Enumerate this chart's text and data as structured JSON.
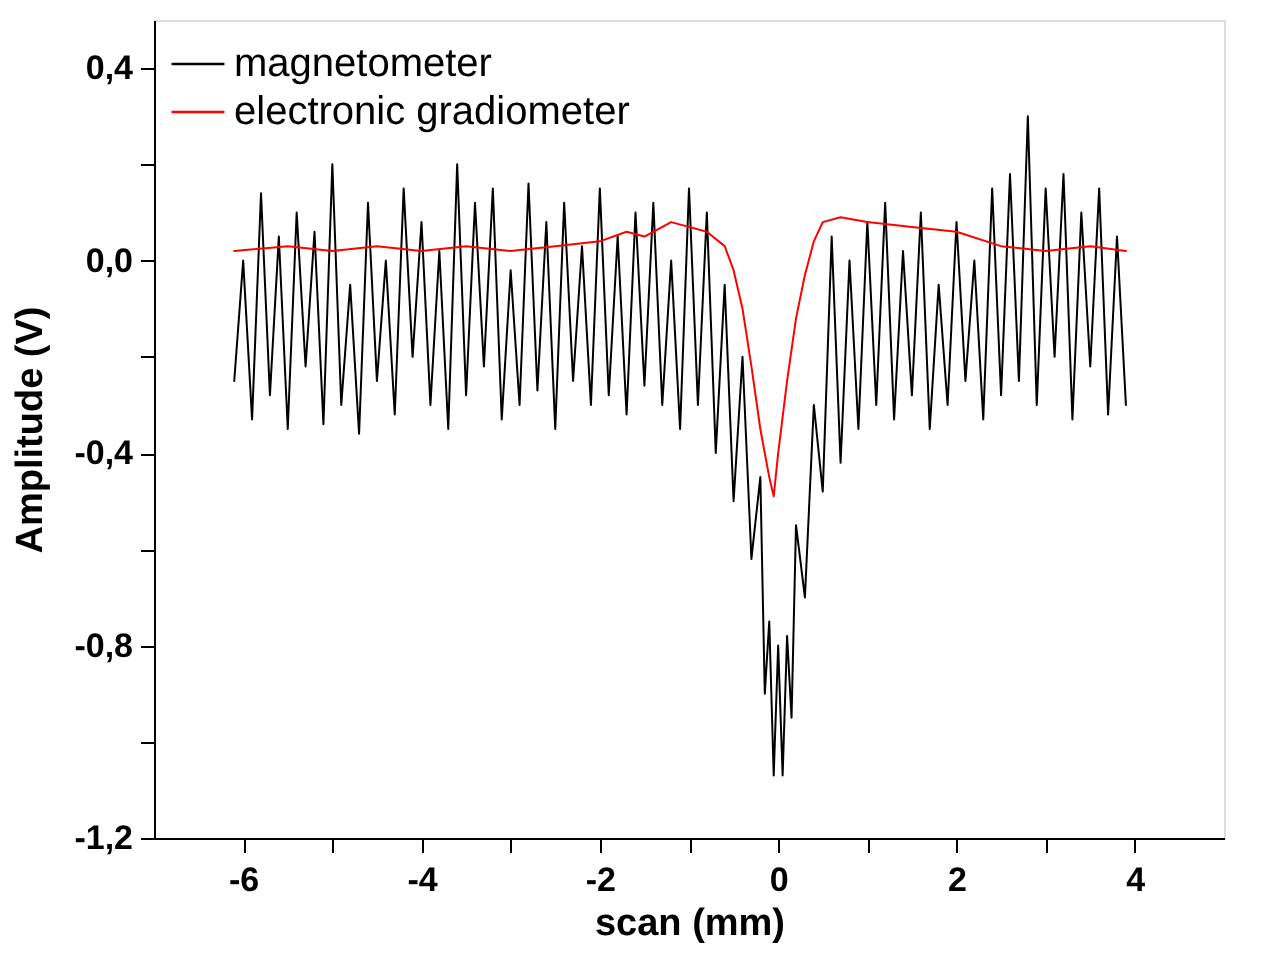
{
  "chart_data": {
    "type": "line",
    "xlabel": "scan (mm)",
    "ylabel": "Amplitude (V)",
    "xlim": [
      -7,
      5
    ],
    "xticks": [
      {
        "value": -6,
        "label": "-6"
      },
      {
        "value": -5,
        "label": null
      },
      {
        "value": -4,
        "label": "-4"
      },
      {
        "value": -3,
        "label": null
      },
      {
        "value": -2,
        "label": "-2"
      },
      {
        "value": -1,
        "label": null
      },
      {
        "value": 0,
        "label": "0"
      },
      {
        "value": 1,
        "label": null
      },
      {
        "value": 2,
        "label": "2"
      },
      {
        "value": 3,
        "label": null
      },
      {
        "value": 4,
        "label": "4"
      }
    ],
    "ylim": [
      -1.2,
      0.5
    ],
    "yticks": [
      {
        "value": 0.4,
        "label": "0,4"
      },
      {
        "value": 0.2,
        "label": null
      },
      {
        "value": 0,
        "label": "0,0"
      },
      {
        "value": -0.2,
        "label": null
      },
      {
        "value": -0.4,
        "label": "-0,4"
      },
      {
        "value": -0.6,
        "label": null
      },
      {
        "value": -0.8,
        "label": "-0,8"
      },
      {
        "value": -1.0,
        "label": null
      },
      {
        "value": -1.2,
        "label": "-1,2"
      }
    ],
    "grid": false,
    "legend": "top left",
    "marker": "none",
    "line_style": "solid",
    "series": [
      {
        "name": "magnetometer",
        "color": "#000000",
        "x": [
          -6.1,
          -6.0,
          -5.9,
          -5.8,
          -5.7,
          -5.6,
          -5.5,
          -5.4,
          -5.3,
          -5.2,
          -5.1,
          -5.0,
          -4.9,
          -4.8,
          -4.7,
          -4.6,
          -4.5,
          -4.4,
          -4.3,
          -4.2,
          -4.1,
          -4.0,
          -3.9,
          -3.8,
          -3.7,
          -3.6,
          -3.5,
          -3.4,
          -3.3,
          -3.2,
          -3.1,
          -3.0,
          -2.9,
          -2.8,
          -2.7,
          -2.6,
          -2.5,
          -2.4,
          -2.3,
          -2.2,
          -2.1,
          -2.0,
          -1.9,
          -1.8,
          -1.7,
          -1.6,
          -1.5,
          -1.4,
          -1.3,
          -1.2,
          -1.1,
          -1.0,
          -0.9,
          -0.8,
          -0.7,
          -0.6,
          -0.5,
          -0.4,
          -0.3,
          -0.2,
          -0.15,
          -0.1,
          -0.05,
          0.0,
          0.05,
          0.1,
          0.15,
          0.2,
          0.3,
          0.4,
          0.5,
          0.6,
          0.7,
          0.8,
          0.9,
          1.0,
          1.1,
          1.2,
          1.3,
          1.4,
          1.5,
          1.6,
          1.7,
          1.8,
          1.9,
          2.0,
          2.1,
          2.2,
          2.3,
          2.4,
          2.5,
          2.6,
          2.7,
          2.8,
          2.9,
          3.0,
          3.1,
          3.2,
          3.3,
          3.4,
          3.5,
          3.6,
          3.7,
          3.8,
          3.9
        ],
        "values": [
          -0.25,
          0.0,
          -0.33,
          0.14,
          -0.28,
          0.05,
          -0.35,
          0.1,
          -0.22,
          0.06,
          -0.34,
          0.2,
          -0.3,
          -0.05,
          -0.36,
          0.12,
          -0.25,
          0.0,
          -0.32,
          0.15,
          -0.2,
          0.08,
          -0.3,
          0.02,
          -0.35,
          0.2,
          -0.28,
          0.12,
          -0.22,
          0.15,
          -0.33,
          -0.02,
          -0.3,
          0.16,
          -0.27,
          0.08,
          -0.35,
          0.12,
          -0.25,
          0.03,
          -0.3,
          0.15,
          -0.28,
          0.05,
          -0.32,
          0.1,
          -0.26,
          0.12,
          -0.3,
          0.0,
          -0.35,
          0.15,
          -0.3,
          0.1,
          -0.4,
          -0.05,
          -0.5,
          -0.2,
          -0.62,
          -0.45,
          -0.9,
          -0.75,
          -1.07,
          -0.8,
          -1.07,
          -0.78,
          -0.95,
          -0.55,
          -0.7,
          -0.3,
          -0.48,
          0.05,
          -0.42,
          0.0,
          -0.35,
          0.08,
          -0.3,
          0.12,
          -0.33,
          0.02,
          -0.28,
          0.1,
          -0.35,
          -0.05,
          -0.3,
          0.08,
          -0.25,
          0.0,
          -0.33,
          0.15,
          -0.28,
          0.18,
          -0.25,
          0.3,
          -0.3,
          0.15,
          -0.2,
          0.18,
          -0.33,
          0.1,
          -0.22,
          0.15,
          -0.32,
          0.05,
          -0.3
        ]
      },
      {
        "name": "electronic gradiometer",
        "color": "#ff0000",
        "x": [
          -6.1,
          -5.5,
          -5.0,
          -4.5,
          -4.0,
          -3.5,
          -3.0,
          -2.5,
          -2.0,
          -1.7,
          -1.5,
          -1.2,
          -1.0,
          -0.8,
          -0.6,
          -0.5,
          -0.4,
          -0.3,
          -0.2,
          -0.1,
          -0.05,
          0.0,
          0.1,
          0.2,
          0.3,
          0.4,
          0.5,
          0.7,
          1.0,
          1.5,
          2.0,
          2.5,
          3.0,
          3.5,
          3.9
        ],
        "values": [
          0.02,
          0.03,
          0.02,
          0.03,
          0.02,
          0.03,
          0.02,
          0.03,
          0.04,
          0.06,
          0.05,
          0.08,
          0.07,
          0.06,
          0.03,
          -0.02,
          -0.1,
          -0.22,
          -0.35,
          -0.45,
          -0.49,
          -0.4,
          -0.25,
          -0.12,
          -0.03,
          0.04,
          0.08,
          0.09,
          0.08,
          0.07,
          0.06,
          0.03,
          0.02,
          0.03,
          0.02
        ]
      }
    ]
  }
}
